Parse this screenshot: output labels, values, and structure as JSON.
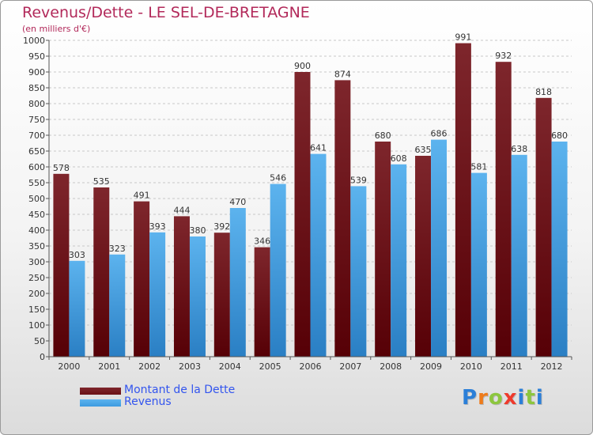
{
  "title": "Revenus/Dette - LE SEL-DE-BRETAGNE",
  "subtitle": "(en milliers d'€)",
  "brand": {
    "letters": [
      "P",
      "r",
      "o",
      "x",
      "i",
      "t",
      "i"
    ],
    "colors": [
      "#2b7fd8",
      "#ee7b1b",
      "#8cc63e",
      "#ee3a2c",
      "#2b7fd8",
      "#8cc63e",
      "#2b7fd8"
    ]
  },
  "colors": {
    "dette": "#6b1114",
    "revenus": "#3d9be0"
  },
  "chart_data": {
    "type": "bar",
    "title": "Revenus/Dette - LE SEL-DE-BRETAGNE",
    "subtitle": "(en milliers d'€)",
    "categories": [
      "2000",
      "2001",
      "2002",
      "2003",
      "2004",
      "2005",
      "2006",
      "2007",
      "2008",
      "2009",
      "2010",
      "2011",
      "2012"
    ],
    "series": [
      {
        "name": "Montant de la Dette",
        "values": [
          578,
          535,
          491,
          444,
          392,
          346,
          900,
          874,
          680,
          635,
          991,
          932,
          818
        ]
      },
      {
        "name": "Revenus",
        "values": [
          303,
          323,
          393,
          380,
          470,
          546,
          641,
          539,
          608,
          686,
          581,
          638,
          680
        ]
      }
    ],
    "ylim": [
      0,
      1000
    ],
    "ytick_step": 50,
    "grid": true,
    "legend_position": "bottom-left"
  }
}
